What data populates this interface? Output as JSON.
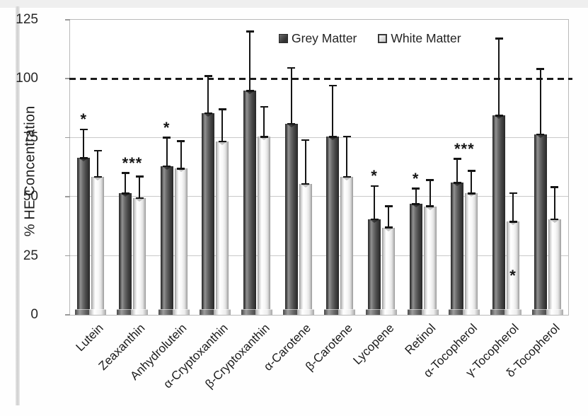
{
  "chart_data": {
    "type": "bar",
    "title": "",
    "xlabel": "",
    "ylabel": "% HE Concentration",
    "ylim": [
      0,
      125
    ],
    "yticks": [
      0,
      25,
      50,
      75,
      100,
      125
    ],
    "grid": "horizontal",
    "legend_position": "top-center",
    "reference_line": {
      "y": 100,
      "style": "dashed"
    },
    "categories": [
      "Lutein",
      "Zeaxanthin",
      "Anhydrolutein",
      "α-Cryptoxanthin",
      "β-Cryptoxanthin",
      "α-Carotene",
      "β-Carotene",
      "Lycopene",
      "Retinol",
      "α-Tocopherol",
      "γ-Tocopherol",
      "δ-Tocopherol"
    ],
    "series": [
      {
        "name": "Grey Matter",
        "values": [
          66.5,
          51.5,
          63,
          85.5,
          95,
          81,
          75.5,
          40.5,
          47,
          56,
          84.5,
          76.5
        ],
        "error_up": [
          12,
          8.5,
          12,
          15.5,
          25,
          23.5,
          21.5,
          14,
          6.5,
          10,
          32.5,
          27.5
        ]
      },
      {
        "name": "White Matter",
        "values": [
          58.5,
          49.5,
          62,
          73.5,
          75.5,
          55.5,
          58.5,
          37,
          46,
          51.5,
          39.5,
          40.5
        ],
        "error_up": [
          11,
          9,
          11.5,
          13.5,
          12.5,
          18.5,
          17,
          9,
          11,
          9.5,
          12,
          13.5
        ]
      }
    ],
    "significance": [
      {
        "category": "Lutein",
        "marker": "*",
        "anchor": "grey"
      },
      {
        "category": "Zeaxanthin",
        "marker": "***",
        "anchor": "pair"
      },
      {
        "category": "Anhydrolutein",
        "marker": "*",
        "anchor": "grey"
      },
      {
        "category": "Lycopene",
        "marker": "*",
        "anchor": "grey"
      },
      {
        "category": "Retinol",
        "marker": "*",
        "anchor": "grey"
      },
      {
        "category": "α-Tocopherol",
        "marker": "***",
        "anchor": "pair"
      },
      {
        "category": "γ-Tocopherol",
        "marker": "*",
        "anchor": "white-inside"
      }
    ],
    "colors": {
      "grey_matter": "#4d4d4d",
      "white_matter": "#f5f5f5",
      "error_bar": "#151515",
      "gridline": "#c9c9c9",
      "reference_line": "#1c1c1c",
      "text": "#1f1f1f"
    }
  }
}
